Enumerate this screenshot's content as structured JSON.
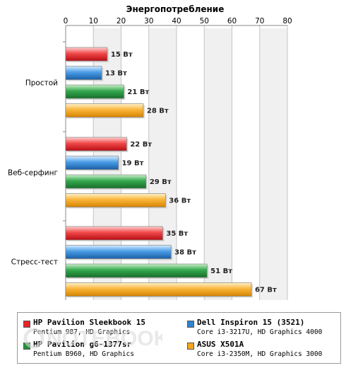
{
  "chart_data": {
    "type": "bar",
    "orientation": "horizontal",
    "title": "Энергопотребление",
    "xlim": [
      0,
      80
    ],
    "ticks": [
      0,
      10,
      20,
      30,
      40,
      50,
      60,
      70,
      80
    ],
    "unit": "Вт",
    "grid": true,
    "legend_position": "bottom",
    "categories": [
      "Простой",
      "Веб-серфинг",
      "Стресс-тест"
    ],
    "series": [
      {
        "name": "HP Pavilion Sleekbook 15",
        "description": "Pentium 987, HD Graphics",
        "color": "#e8242b",
        "values": [
          15,
          22,
          35
        ]
      },
      {
        "name": "Dell Inspiron 15 (3521)",
        "description": "Core i3-3217U, HD Graphics 4000",
        "color": "#2f84d0",
        "values": [
          13,
          19,
          38
        ]
      },
      {
        "name": "HP Pavilion g6-1377sr",
        "description": "Pentium B960, HD Graphics",
        "color": "#21943a",
        "values": [
          21,
          29,
          51
        ]
      },
      {
        "name": "ASUS X501A",
        "description": "Core i3-2350M, HD Graphics 3000",
        "color": "#f5a623",
        "values": [
          28,
          36,
          67
        ]
      }
    ]
  },
  "watermark": "NOTEBOOK"
}
